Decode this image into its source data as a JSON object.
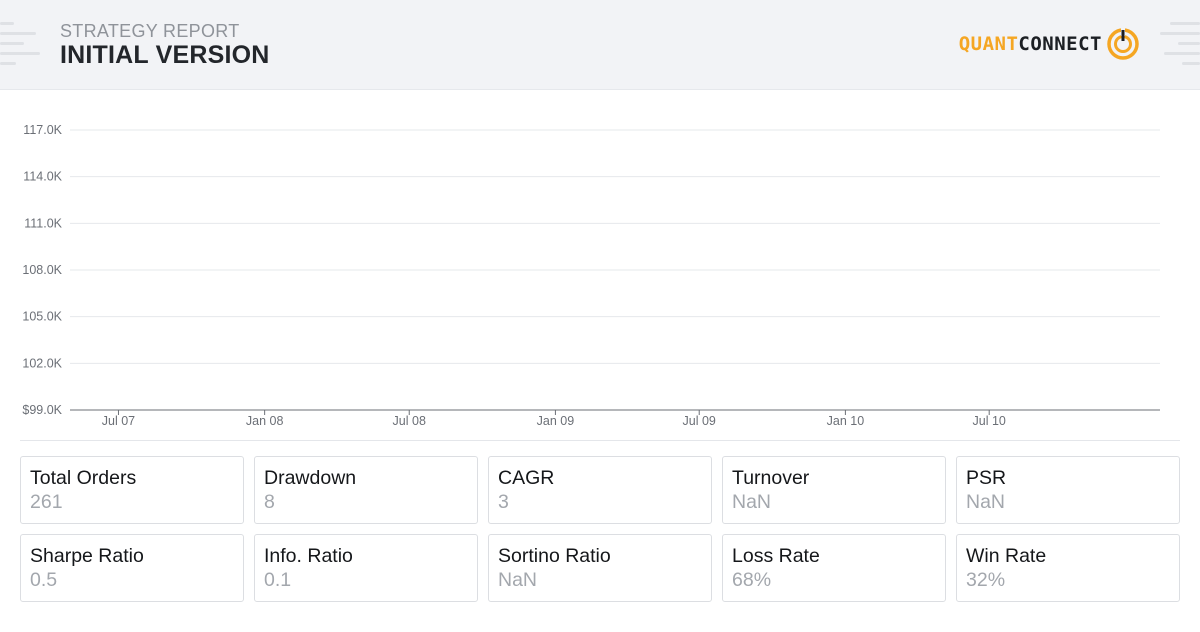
{
  "header": {
    "subtitle": "STRATEGY REPORT",
    "title": "INITIAL VERSION",
    "logo": {
      "part1": "QUANT",
      "part2": "CONNECT",
      "part1_color": "#f5a623",
      "part2_color": "#1c1f24"
    }
  },
  "chart_data": {
    "type": "line",
    "title": "",
    "xlabel": "",
    "ylabel": "",
    "y_ticks": [
      "117.0K",
      "114.0K",
      "111.0K",
      "108.0K",
      "105.0K",
      "102.0K",
      "$99.0K"
    ],
    "y_tick_values": [
      117000,
      114000,
      111000,
      108000,
      105000,
      102000,
      99000
    ],
    "ylim": [
      99000,
      117000
    ],
    "x_ticks": [
      "Jul 07",
      "Jan 08",
      "Jul 08",
      "Jan 09",
      "Jul 09",
      "Jan 10",
      "Jul 10"
    ],
    "x_tick_dates": [
      "2007-07-01",
      "2008-01-01",
      "2008-07-01",
      "2009-01-01",
      "2009-07-01",
      "2010-01-01",
      "2010-07-01"
    ],
    "xlim": [
      "2007-05-01",
      "2011-02-01"
    ],
    "grid": true,
    "series": []
  },
  "stats": [
    {
      "label": "Total Orders",
      "value": "261"
    },
    {
      "label": "Drawdown",
      "value": "8"
    },
    {
      "label": "CAGR",
      "value": "3"
    },
    {
      "label": "Turnover",
      "value": "NaN"
    },
    {
      "label": "PSR",
      "value": "NaN"
    },
    {
      "label": "Sharpe Ratio",
      "value": "0.5"
    },
    {
      "label": "Info. Ratio",
      "value": "0.1"
    },
    {
      "label": "Sortino Ratio",
      "value": "NaN"
    },
    {
      "label": "Loss Rate",
      "value": "68%"
    },
    {
      "label": "Win Rate",
      "value": "32%"
    }
  ]
}
